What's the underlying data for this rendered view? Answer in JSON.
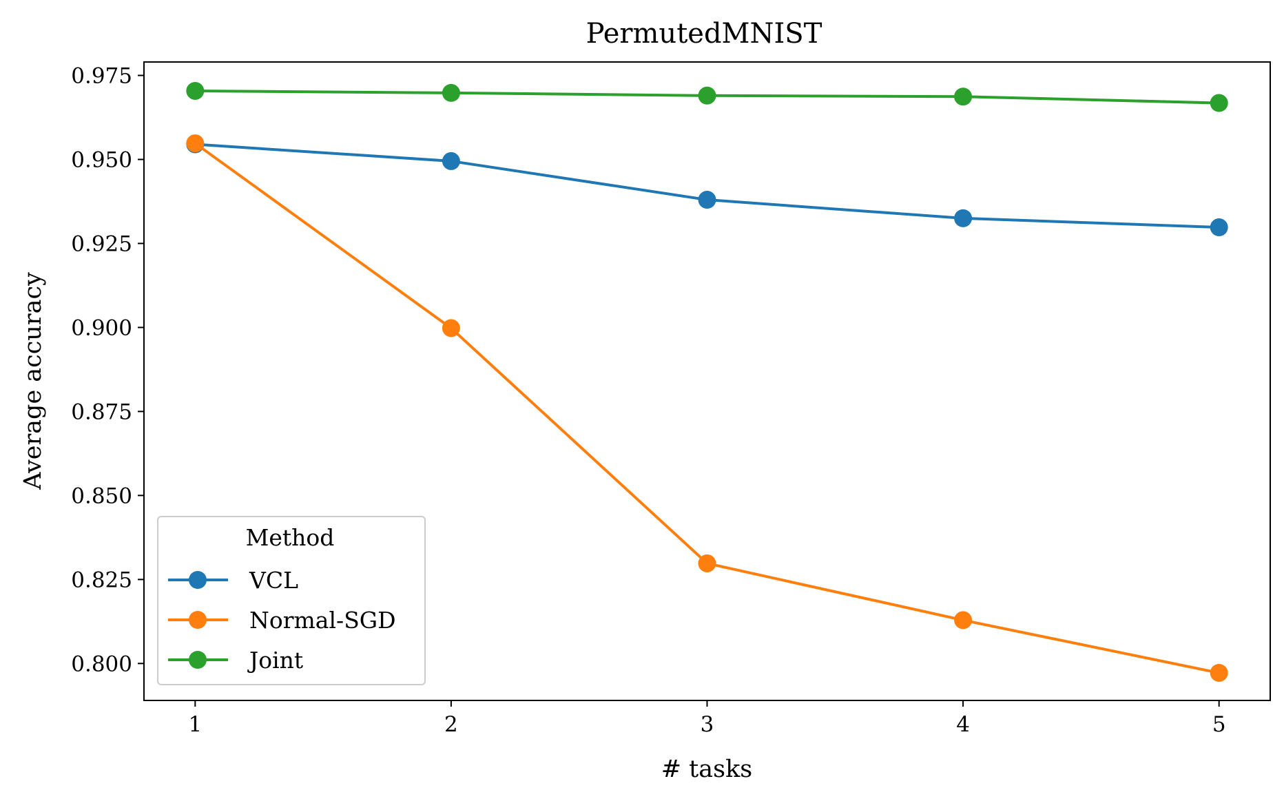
{
  "chart_data": {
    "type": "line",
    "title": "PermutedMNIST",
    "xlabel": "# tasks",
    "ylabel": "Average accuracy",
    "x": [
      1,
      2,
      3,
      4,
      5
    ],
    "xlim": [
      0.8,
      5.2
    ],
    "ylim": [
      0.789,
      0.979
    ],
    "xticks": [
      1,
      2,
      3,
      4,
      5
    ],
    "yticks": [
      0.8,
      0.825,
      0.85,
      0.875,
      0.9,
      0.925,
      0.95,
      0.975
    ],
    "ytick_labels": [
      "0.800",
      "0.825",
      "0.850",
      "0.875",
      "0.900",
      "0.925",
      "0.950",
      "0.975"
    ],
    "grid": false,
    "legend": {
      "title": "Method",
      "placement": "lower-left"
    },
    "series": [
      {
        "name": "VCL",
        "color": "#1f77b4",
        "values": [
          0.9545,
          0.9495,
          0.938,
          0.9325,
          0.9298
        ]
      },
      {
        "name": "Normal-SGD",
        "color": "#ff7f0e",
        "values": [
          0.9548,
          0.8998,
          0.8298,
          0.8129,
          0.7972
        ]
      },
      {
        "name": "Joint",
        "color": "#2ca02c",
        "values": [
          0.9704,
          0.9698,
          0.969,
          0.9687,
          0.9668
        ]
      }
    ]
  }
}
